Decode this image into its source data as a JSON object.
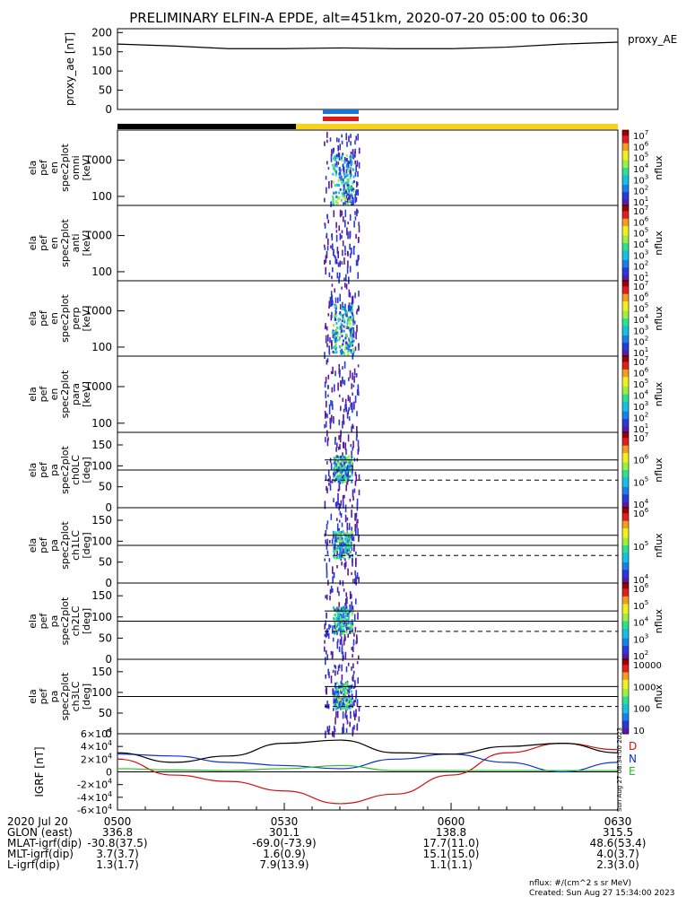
{
  "title": "PRELIMINARY ELFIN-A EPDE, alt=451km, 2020-07-20 05:00 to 06:30",
  "chart_data": [
    {
      "type": "line",
      "panel": "proxy_ae",
      "ylabel": "proxy_ae [nT]",
      "legend": "proxy_AE",
      "ylim": [
        0,
        210
      ],
      "yticks": [
        "200",
        "150",
        "100",
        "50",
        "0"
      ],
      "x_minutes": [
        0,
        10,
        20,
        30,
        40,
        50,
        60,
        70,
        80,
        90
      ],
      "values": [
        170,
        165,
        158,
        158,
        160,
        158,
        158,
        162,
        170,
        175
      ]
    },
    {
      "type": "heatmap",
      "panel": "ela_pef_en_spec2plot_omni",
      "ylabel": [
        "ela",
        "pef",
        "en",
        "spec2plot",
        "omni",
        "[keV]"
      ],
      "yticks": [
        "1000",
        "100"
      ],
      "yscale": "log",
      "zlabel": "nflux",
      "zticks": [
        "10^7",
        "10^6",
        "10^5",
        "10^4",
        "10^3",
        "10^2",
        "10^1"
      ]
    },
    {
      "type": "heatmap",
      "panel": "ela_pef_en_spec2plot_anti",
      "ylabel": [
        "ela",
        "pef",
        "en",
        "spec2plot",
        "anti",
        "[keV]"
      ],
      "yticks": [
        "1000",
        "100"
      ],
      "yscale": "log",
      "zlabel": "nflux",
      "zticks": [
        "10^7",
        "10^6",
        "10^5",
        "10^4",
        "10^3",
        "10^2",
        "10^1"
      ]
    },
    {
      "type": "heatmap",
      "panel": "ela_pef_en_spec2plot_perp",
      "ylabel": [
        "ela",
        "pef",
        "en",
        "spec2plot",
        "perp",
        "[keV]"
      ],
      "yticks": [
        "1000",
        "100"
      ],
      "yscale": "log",
      "zlabel": "nflux",
      "zticks": [
        "10^7",
        "10^6",
        "10^5",
        "10^4",
        "10^3",
        "10^2",
        "10^1"
      ]
    },
    {
      "type": "heatmap",
      "panel": "ela_pef_en_spec2plot_para",
      "ylabel": [
        "ela",
        "pef",
        "en",
        "spec2plot",
        "para",
        "[keV]"
      ],
      "yticks": [
        "1000",
        "100"
      ],
      "yscale": "log",
      "zlabel": "nflux",
      "zticks": [
        "10^7",
        "10^6",
        "10^5",
        "10^4",
        "10^3",
        "10^2",
        "10^1"
      ]
    },
    {
      "type": "heatmap",
      "panel": "ela_pef_pa_spec2plot_ch0LC",
      "ylabel": [
        "ela",
        "pef",
        "pa",
        "spec2plot",
        "ch0LC",
        "[deg]"
      ],
      "yticks": [
        "150",
        "100",
        "50",
        "0"
      ],
      "ylim": [
        0,
        180
      ],
      "zlabel": "nflux",
      "zticks": [
        "10^7",
        "10^6",
        "10^5",
        "10^4"
      ]
    },
    {
      "type": "heatmap",
      "panel": "ela_pef_pa_spec2plot_ch1LC",
      "ylabel": [
        "ela",
        "pef",
        "pa",
        "spec2plot",
        "ch1LC",
        "[deg]"
      ],
      "yticks": [
        "150",
        "100",
        "50",
        "0"
      ],
      "ylim": [
        0,
        180
      ],
      "zlabel": "nflux",
      "zticks": [
        "10^6",
        "10^5",
        "10^4"
      ]
    },
    {
      "type": "heatmap",
      "panel": "ela_pef_pa_spec2plot_ch2LC",
      "ylabel": [
        "ela",
        "pef",
        "pa",
        "spec2plot",
        "ch2LC",
        "[deg]"
      ],
      "yticks": [
        "150",
        "100",
        "50",
        "0"
      ],
      "ylim": [
        0,
        180
      ],
      "zlabel": "nflux",
      "zticks": [
        "10^6",
        "10^5",
        "10^4",
        "10^3",
        "10^2"
      ]
    },
    {
      "type": "heatmap",
      "panel": "ela_pef_pa_spec2plot_ch3LC",
      "ylabel": [
        "ela",
        "pef",
        "pa",
        "spec2plot",
        "ch3LC",
        "[deg]"
      ],
      "yticks": [
        "150",
        "100",
        "50",
        "0"
      ],
      "ylim": [
        0,
        180
      ],
      "zlabel": "nflux",
      "zticks": [
        "10000",
        "1000",
        "100",
        "10"
      ]
    },
    {
      "type": "line",
      "panel": "IGRF",
      "ylabel": "IGRF [nT]",
      "ylim": [
        -60000,
        60000
      ],
      "yticks": [
        "6×10^4",
        "4×10^4",
        "2×10^4",
        "0",
        "-2×10^4",
        "-4×10^4",
        "-6×10^4"
      ],
      "x_minutes": [
        0,
        10,
        20,
        30,
        40,
        50,
        60,
        70,
        80,
        90
      ],
      "series": [
        {
          "name": "D",
          "color": "#d01010",
          "values": [
            20000,
            -5000,
            -15000,
            -30000,
            -50000,
            -35000,
            -5000,
            30000,
            45000,
            35000
          ]
        },
        {
          "name": "N",
          "color": "#1030d0",
          "values": [
            28000,
            25000,
            15000,
            10000,
            5000,
            20000,
            28000,
            15000,
            0,
            15000
          ]
        },
        {
          "name": "E",
          "color": "#20c020",
          "values": [
            5000,
            3000,
            2000,
            5000,
            10000,
            2000,
            2000,
            2000,
            2000,
            2000
          ]
        },
        {
          "color": "#000000",
          "values": [
            30000,
            15000,
            25000,
            45000,
            50000,
            30000,
            28000,
            40000,
            45000,
            30000
          ]
        }
      ]
    }
  ],
  "time_axis": {
    "date": "2020 Jul 20",
    "ticks": [
      "0500",
      "0530",
      "0600",
      "0630"
    ],
    "rows": [
      {
        "label": "GLON (east)",
        "values": [
          "336.8",
          "301.1",
          "138.8",
          "315.5"
        ]
      },
      {
        "label": "MLAT-igrf(dip)",
        "values": [
          "-30.8(37.5)",
          "-69.0(-73.9)",
          "17.7(11.0)",
          "48.6(53.4)"
        ]
      },
      {
        "label": "MLT-igrf(dip)",
        "values": [
          "3.7(3.7)",
          "1.6(0.9)",
          "15.1(15.0)",
          "4.0(3.7)"
        ]
      },
      {
        "label": "L-igrf(dip)",
        "values": [
          "1.3(1.7)",
          "7.9(13.9)",
          "1.1(1.1)",
          "2.3(3.0)"
        ]
      }
    ]
  },
  "igrf_legend": [
    "D",
    "N",
    "E"
  ],
  "stamp": "Sun Aug 27 08:34:00 2023",
  "footer": {
    "units": "nflux: #/(cm^2 s sr MeV)",
    "created": "Created: Sun Aug 27 15:34:00 2023"
  },
  "colors": {
    "yellow_bar": "#f7d21a",
    "black_bar": "#000000",
    "blue_mark": "#1b74d8",
    "red_mark": "#e01818"
  }
}
